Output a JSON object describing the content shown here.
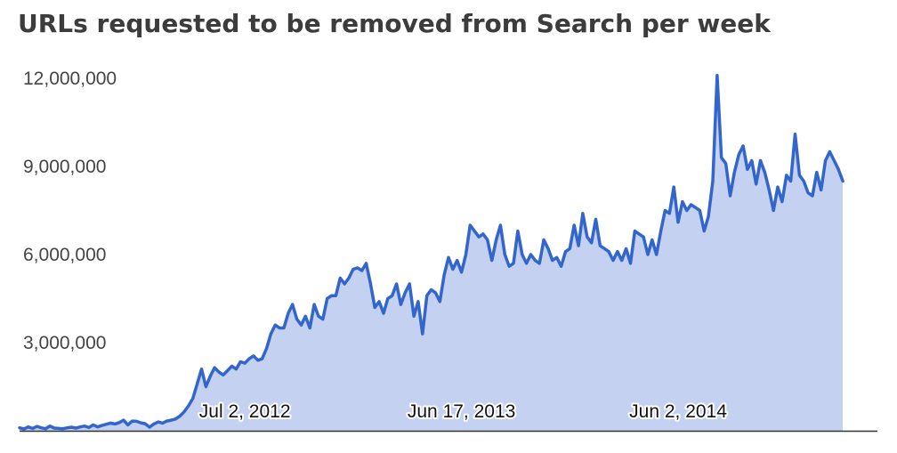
{
  "chart_data": {
    "type": "area",
    "title": "URLs requested to be removed from Search per week",
    "xlabel": "",
    "ylabel": "",
    "ylim": [
      0,
      12000000
    ],
    "y_ticks": [
      3000000,
      6000000,
      9000000,
      12000000
    ],
    "y_tick_labels": [
      "3,000,000",
      "6,000,000",
      "9,000,000",
      "12,000,000"
    ],
    "x_ticks": [
      {
        "date": "2012-07-02",
        "label": "Jul 2, 2012"
      },
      {
        "date": "2013-06-17",
        "label": "Jun 17, 2013"
      },
      {
        "date": "2014-06-02",
        "label": "Jun 2, 2014"
      }
    ],
    "x_range": [
      "2011-07-04",
      "2015-04-20"
    ],
    "grid": false,
    "legend": "none",
    "colors": {
      "line": "#3366cc",
      "fill": "#c4d1f0",
      "baseline": "#333333"
    },
    "series": [
      {
        "start_date": "2011-07-04",
        "interval": "week",
        "values": [
          100000,
          60000,
          130000,
          80000,
          150000,
          100000,
          70000,
          160000,
          90000,
          80000,
          70000,
          100000,
          120000,
          90000,
          130000,
          160000,
          110000,
          200000,
          130000,
          180000,
          220000,
          260000,
          230000,
          280000,
          360000,
          200000,
          330000,
          320000,
          270000,
          240000,
          120000,
          230000,
          300000,
          260000,
          330000,
          360000,
          400000,
          500000,
          650000,
          850000,
          1100000,
          1600000,
          2100000,
          1500000,
          1850000,
          2150000,
          2000000,
          1900000,
          2050000,
          2200000,
          2100000,
          2350000,
          2300000,
          2450000,
          2550000,
          2400000,
          2450000,
          2800000,
          3300000,
          3600000,
          3500000,
          3500000,
          4000000,
          4300000,
          3800000,
          3600000,
          3900000,
          3500000,
          4300000,
          3900000,
          3800000,
          4500000,
          4600000,
          4600000,
          5200000,
          5000000,
          5200000,
          5500000,
          5550000,
          5450000,
          5700000,
          5000000,
          4200000,
          4400000,
          4000000,
          4500000,
          4600000,
          5000000,
          4300000,
          4700000,
          5000000,
          3900000,
          4400000,
          3300000,
          4600000,
          4800000,
          4700000,
          4400000,
          5300000,
          5900000,
          5500000,
          5800000,
          5400000,
          6000000,
          7000000,
          6800000,
          6600000,
          6700000,
          6500000,
          5800000,
          6500000,
          7000000,
          6000000,
          5600000,
          5700000,
          6800000,
          6000000,
          5700000,
          6000000,
          5800000,
          5700000,
          6500000,
          6200000,
          5800000,
          5900000,
          5600000,
          6100000,
          6200000,
          7000000,
          6300000,
          7400000,
          6600000,
          6400000,
          7200000,
          6300000,
          6200000,
          6100000,
          5800000,
          6100000,
          5800000,
          6200000,
          5700000,
          6800000,
          6700000,
          6600000,
          6000000,
          6500000,
          6000000,
          6800000,
          7500000,
          7400000,
          8300000,
          7100000,
          7800000,
          7500000,
          7700000,
          7600000,
          7500000,
          6800000,
          7300000,
          8500000,
          12100000,
          9300000,
          9100000,
          8000000,
          8800000,
          9400000,
          9700000,
          8900000,
          9200000,
          8400000,
          9200000,
          8800000,
          8200000,
          7500000,
          8300000,
          7800000,
          8700000,
          8500000,
          10100000,
          8700000,
          8500000,
          8100000,
          8000000,
          8800000,
          8200000,
          9200000,
          9500000,
          9200000,
          8900000,
          8500000
        ]
      }
    ]
  }
}
